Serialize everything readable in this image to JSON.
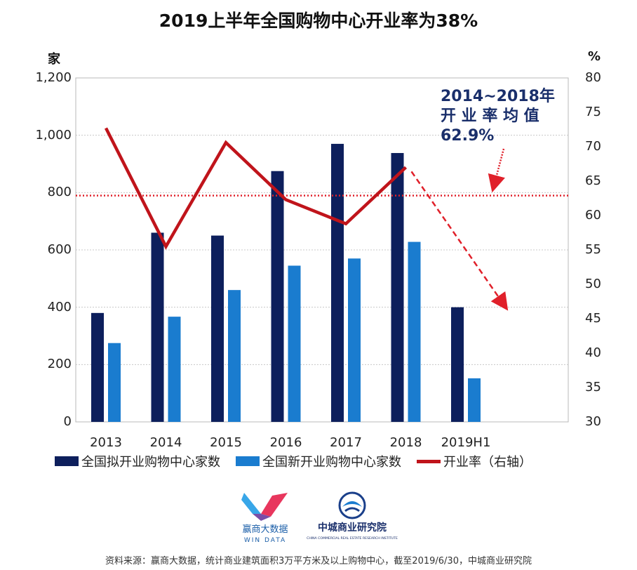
{
  "title": "2019上半年全国购物中心开业率为38%",
  "left_unit": "家",
  "right_unit": "%",
  "annotation": {
    "line1": "2014~2018年",
    "line2": "开 业 率 均 值",
    "line3": "62.9%"
  },
  "legend": {
    "planned": "全国拟开业购物中心家数",
    "new": "全国新开业购物中心家数",
    "rate": "开业率（右轴）"
  },
  "logos": {
    "windata_cn": "赢商大数据",
    "windata_en": "WIN DATA",
    "institute_cn": "中城商业研究院",
    "institute_en": "CHINA COMMERCIAL REAL ESTATE RESEARCH INSTITUTE"
  },
  "source": "资料来源：赢商大数据，统计商业建筑面积3万平方米及以上购物中心，截至2019/6/30，中城商业研究院",
  "colors": {
    "planned": "#0d1f5c",
    "new": "#1a7ccf",
    "rate": "#c0141b",
    "average": "#e0202a",
    "trend": "#e0202a",
    "annotation": "#1a2f6b"
  },
  "chart_data": {
    "type": "bar",
    "categories": [
      "2013",
      "2014",
      "2015",
      "2016",
      "2017",
      "2018",
      "2019H1"
    ],
    "series": [
      {
        "name": "全国拟开业购物中心家数",
        "type": "bar",
        "axis": "left",
        "values": [
          380,
          660,
          650,
          875,
          970,
          938,
          400
        ]
      },
      {
        "name": "全国新开业购物中心家数",
        "type": "bar",
        "axis": "left",
        "values": [
          275,
          367,
          460,
          545,
          570,
          628,
          152
        ]
      },
      {
        "name": "开业率（右轴）",
        "type": "line",
        "axis": "right",
        "values": [
          72.7,
          55.5,
          70.6,
          62.3,
          58.8,
          67.0,
          null
        ]
      }
    ],
    "left_axis": {
      "min": 0,
      "max": 1200,
      "ticks": [
        "0",
        "200",
        "400",
        "600",
        "800",
        "1,000",
        "1,200"
      ]
    },
    "right_axis": {
      "min": 30,
      "max": 80,
      "ticks": [
        "30",
        "35",
        "40",
        "45",
        "50",
        "55",
        "60",
        "65",
        "70",
        "75",
        "80"
      ]
    },
    "average_line": {
      "value": 62.9,
      "axis": "right"
    },
    "trend_arrow": {
      "from": {
        "category": "2018",
        "value": 67.0
      },
      "to": {
        "category": "2019H1+",
        "value": 47.0
      }
    },
    "grid": true
  }
}
